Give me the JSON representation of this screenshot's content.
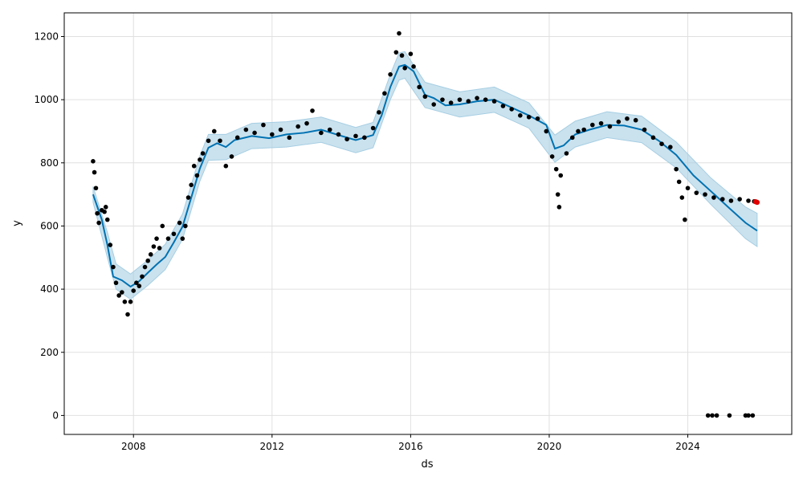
{
  "chart_data": {
    "type": "line",
    "xlabel": "ds",
    "ylabel": "y",
    "xlim": [
      "2006-01-01",
      "2027-01-01"
    ],
    "ylim": [
      -60,
      1275
    ],
    "grid": true,
    "x_ticks": [
      "2008",
      "2012",
      "2016",
      "2020",
      "2024"
    ],
    "y_ticks": [
      0,
      200,
      400,
      600,
      800,
      1000,
      1200
    ],
    "series": [
      {
        "role": "forecast",
        "color": "#0072B2",
        "points": [
          [
            "2006-11-01",
            700
          ],
          [
            "2007-02-01",
            620
          ],
          [
            "2007-04-01",
            540
          ],
          [
            "2007-06-01",
            440
          ],
          [
            "2007-09-01",
            428
          ],
          [
            "2007-12-01",
            408
          ],
          [
            "2008-03-01",
            425
          ],
          [
            "2008-06-01",
            452
          ],
          [
            "2008-09-01",
            478
          ],
          [
            "2008-12-01",
            502
          ],
          [
            "2009-03-01",
            548
          ],
          [
            "2009-06-01",
            598
          ],
          [
            "2009-09-01",
            690
          ],
          [
            "2009-12-01",
            782
          ],
          [
            "2010-03-01",
            848
          ],
          [
            "2010-06-01",
            862
          ],
          [
            "2010-09-01",
            850
          ],
          [
            "2010-12-01",
            872
          ],
          [
            "2011-06-01",
            885
          ],
          [
            "2011-12-01",
            878
          ],
          [
            "2012-06-01",
            890
          ],
          [
            "2012-12-01",
            895
          ],
          [
            "2013-06-01",
            905
          ],
          [
            "2013-12-01",
            888
          ],
          [
            "2014-06-01",
            872
          ],
          [
            "2014-12-01",
            888
          ],
          [
            "2015-03-01",
            950
          ],
          [
            "2015-06-01",
            1040
          ],
          [
            "2015-09-01",
            1105
          ],
          [
            "2015-11-01",
            1110
          ],
          [
            "2016-02-01",
            1090
          ],
          [
            "2016-06-01",
            1015
          ],
          [
            "2016-09-01",
            1005
          ],
          [
            "2017-01-01",
            982
          ],
          [
            "2017-06-01",
            985
          ],
          [
            "2017-12-01",
            995
          ],
          [
            "2018-06-01",
            1000
          ],
          [
            "2018-12-01",
            975
          ],
          [
            "2019-06-01",
            950
          ],
          [
            "2019-12-01",
            920
          ],
          [
            "2020-03-01",
            845
          ],
          [
            "2020-06-01",
            855
          ],
          [
            "2020-10-01",
            890
          ],
          [
            "2021-03-01",
            905
          ],
          [
            "2021-09-01",
            920
          ],
          [
            "2022-03-01",
            918
          ],
          [
            "2022-09-01",
            905
          ],
          [
            "2023-03-01",
            870
          ],
          [
            "2023-09-01",
            825
          ],
          [
            "2024-03-01",
            760
          ],
          [
            "2024-09-01",
            710
          ],
          [
            "2025-03-01",
            660
          ],
          [
            "2025-09-01",
            610
          ],
          [
            "2026-01-01",
            585
          ]
        ]
      },
      {
        "role": "uncertainty_interval",
        "color": "#a6cee3",
        "upper": [
          [
            "2006-11-01",
            725
          ],
          [
            "2007-04-01",
            580
          ],
          [
            "2007-07-01",
            480
          ],
          [
            "2007-12-01",
            448
          ],
          [
            "2008-06-01",
            492
          ],
          [
            "2008-12-01",
            542
          ],
          [
            "2009-06-01",
            638
          ],
          [
            "2009-12-01",
            822
          ],
          [
            "2010-03-01",
            890
          ],
          [
            "2010-09-01",
            890
          ],
          [
            "2011-06-01",
            925
          ],
          [
            "2012-06-01",
            930
          ],
          [
            "2013-06-01",
            945
          ],
          [
            "2014-06-01",
            912
          ],
          [
            "2014-12-01",
            928
          ],
          [
            "2015-06-01",
            1080
          ],
          [
            "2015-09-01",
            1148
          ],
          [
            "2015-11-01",
            1152
          ],
          [
            "2016-06-01",
            1055
          ],
          [
            "2017-06-01",
            1025
          ],
          [
            "2018-06-01",
            1040
          ],
          [
            "2019-06-01",
            990
          ],
          [
            "2020-03-01",
            888
          ],
          [
            "2020-10-01",
            932
          ],
          [
            "2021-09-01",
            962
          ],
          [
            "2022-09-01",
            948
          ],
          [
            "2023-09-01",
            866
          ],
          [
            "2024-09-01",
            752
          ],
          [
            "2025-09-01",
            660
          ],
          [
            "2026-01-01",
            640
          ]
        ],
        "lower": [
          [
            "2006-11-01",
            675
          ],
          [
            "2007-04-01",
            500
          ],
          [
            "2007-07-01",
            400
          ],
          [
            "2007-12-01",
            368
          ],
          [
            "2008-06-01",
            412
          ],
          [
            "2008-12-01",
            462
          ],
          [
            "2009-06-01",
            558
          ],
          [
            "2009-12-01",
            742
          ],
          [
            "2010-03-01",
            808
          ],
          [
            "2010-09-01",
            810
          ],
          [
            "2011-06-01",
            845
          ],
          [
            "2012-06-01",
            850
          ],
          [
            "2013-06-01",
            865
          ],
          [
            "2014-06-01",
            832
          ],
          [
            "2014-12-01",
            848
          ],
          [
            "2015-06-01",
            1000
          ],
          [
            "2015-09-01",
            1062
          ],
          [
            "2015-11-01",
            1068
          ],
          [
            "2016-06-01",
            975
          ],
          [
            "2017-06-01",
            945
          ],
          [
            "2018-06-01",
            960
          ],
          [
            "2019-06-01",
            910
          ],
          [
            "2020-03-01",
            802
          ],
          [
            "2020-10-01",
            850
          ],
          [
            "2021-09-01",
            880
          ],
          [
            "2022-09-01",
            864
          ],
          [
            "2023-09-01",
            784
          ],
          [
            "2024-09-01",
            668
          ],
          [
            "2025-09-01",
            560
          ],
          [
            "2026-01-01",
            535
          ]
        ]
      },
      {
        "role": "observed",
        "color": "#000000",
        "points": [
          [
            "2006-11-01",
            805
          ],
          [
            "2006-11-15",
            770
          ],
          [
            "2006-12-01",
            720
          ],
          [
            "2006-12-15",
            640
          ],
          [
            "2007-01-01",
            610
          ],
          [
            "2007-02-01",
            650
          ],
          [
            "2007-03-01",
            645
          ],
          [
            "2007-03-15",
            660
          ],
          [
            "2007-04-01",
            620
          ],
          [
            "2007-05-01",
            540
          ],
          [
            "2007-06-01",
            470
          ],
          [
            "2007-07-01",
            420
          ],
          [
            "2007-08-01",
            380
          ],
          [
            "2007-09-01",
            390
          ],
          [
            "2007-10-01",
            360
          ],
          [
            "2007-11-01",
            320
          ],
          [
            "2007-12-01",
            360
          ],
          [
            "2008-01-01",
            395
          ],
          [
            "2008-02-01",
            420
          ],
          [
            "2008-03-01",
            410
          ],
          [
            "2008-04-01",
            440
          ],
          [
            "2008-05-01",
            470
          ],
          [
            "2008-06-01",
            490
          ],
          [
            "2008-07-01",
            510
          ],
          [
            "2008-08-01",
            535
          ],
          [
            "2008-09-01",
            560
          ],
          [
            "2008-10-01",
            530
          ],
          [
            "2008-11-01",
            600
          ],
          [
            "2009-01-01",
            560
          ],
          [
            "2009-03-01",
            575
          ],
          [
            "2009-05-01",
            610
          ],
          [
            "2009-06-01",
            560
          ],
          [
            "2009-07-01",
            600
          ],
          [
            "2009-08-01",
            690
          ],
          [
            "2009-09-01",
            730
          ],
          [
            "2009-10-01",
            790
          ],
          [
            "2009-11-01",
            760
          ],
          [
            "2009-12-01",
            810
          ],
          [
            "2010-01-01",
            830
          ],
          [
            "2010-03-01",
            870
          ],
          [
            "2010-05-01",
            900
          ],
          [
            "2010-07-01",
            870
          ],
          [
            "2010-09-01",
            790
          ],
          [
            "2010-11-01",
            820
          ],
          [
            "2011-01-01",
            880
          ],
          [
            "2011-04-01",
            905
          ],
          [
            "2011-07-01",
            895
          ],
          [
            "2011-10-01",
            920
          ],
          [
            "2012-01-01",
            890
          ],
          [
            "2012-04-01",
            905
          ],
          [
            "2012-07-01",
            880
          ],
          [
            "2012-10-01",
            915
          ],
          [
            "2013-01-01",
            925
          ],
          [
            "2013-03-01",
            965
          ],
          [
            "2013-06-01",
            895
          ],
          [
            "2013-09-01",
            905
          ],
          [
            "2013-12-01",
            890
          ],
          [
            "2014-03-01",
            875
          ],
          [
            "2014-06-01",
            885
          ],
          [
            "2014-09-01",
            880
          ],
          [
            "2014-12-01",
            910
          ],
          [
            "2015-02-01",
            960
          ],
          [
            "2015-04-01",
            1020
          ],
          [
            "2015-06-01",
            1080
          ],
          [
            "2015-08-01",
            1150
          ],
          [
            "2015-09-01",
            1210
          ],
          [
            "2015-10-01",
            1140
          ],
          [
            "2015-11-01",
            1100
          ],
          [
            "2016-01-01",
            1145
          ],
          [
            "2016-02-01",
            1105
          ],
          [
            "2016-04-01",
            1040
          ],
          [
            "2016-06-01",
            1010
          ],
          [
            "2016-09-01",
            985
          ],
          [
            "2016-12-01",
            1000
          ],
          [
            "2017-03-01",
            990
          ],
          [
            "2017-06-01",
            1000
          ],
          [
            "2017-09-01",
            995
          ],
          [
            "2017-12-01",
            1005
          ],
          [
            "2018-03-01",
            1000
          ],
          [
            "2018-06-01",
            995
          ],
          [
            "2018-09-01",
            980
          ],
          [
            "2018-12-01",
            970
          ],
          [
            "2019-03-01",
            950
          ],
          [
            "2019-06-01",
            945
          ],
          [
            "2019-09-01",
            940
          ],
          [
            "2019-12-01",
            900
          ],
          [
            "2020-02-01",
            820
          ],
          [
            "2020-03-15",
            780
          ],
          [
            "2020-04-01",
            700
          ],
          [
            "2020-04-15",
            660
          ],
          [
            "2020-05-01",
            760
          ],
          [
            "2020-07-01",
            830
          ],
          [
            "2020-09-01",
            880
          ],
          [
            "2020-11-01",
            900
          ],
          [
            "2021-01-01",
            905
          ],
          [
            "2021-04-01",
            920
          ],
          [
            "2021-07-01",
            925
          ],
          [
            "2021-10-01",
            915
          ],
          [
            "2022-01-01",
            930
          ],
          [
            "2022-04-01",
            940
          ],
          [
            "2022-07-01",
            935
          ],
          [
            "2022-10-01",
            905
          ],
          [
            "2023-01-01",
            880
          ],
          [
            "2023-04-01",
            860
          ],
          [
            "2023-07-01",
            850
          ],
          [
            "2023-09-01",
            780
          ],
          [
            "2023-10-01",
            740
          ],
          [
            "2023-11-01",
            690
          ],
          [
            "2023-12-01",
            620
          ],
          [
            "2024-01-01",
            720
          ],
          [
            "2024-04-01",
            705
          ],
          [
            "2024-07-01",
            700
          ],
          [
            "2024-10-01",
            690
          ],
          [
            "2025-01-01",
            685
          ],
          [
            "2025-04-01",
            680
          ],
          [
            "2025-07-01",
            685
          ],
          [
            "2025-10-01",
            680
          ],
          [
            "2025-12-01",
            678
          ],
          [
            "2024-08-01",
            0
          ],
          [
            "2024-09-15",
            0
          ],
          [
            "2024-11-01",
            0
          ],
          [
            "2025-03-15",
            0
          ],
          [
            "2025-09-01",
            0
          ],
          [
            "2025-10-01",
            0
          ],
          [
            "2025-11-15",
            0
          ]
        ]
      },
      {
        "role": "highlighted_points",
        "color": "#e00000",
        "points": [
          [
            "2025-12-15",
            677
          ],
          [
            "2026-01-01",
            675
          ]
        ]
      }
    ]
  }
}
